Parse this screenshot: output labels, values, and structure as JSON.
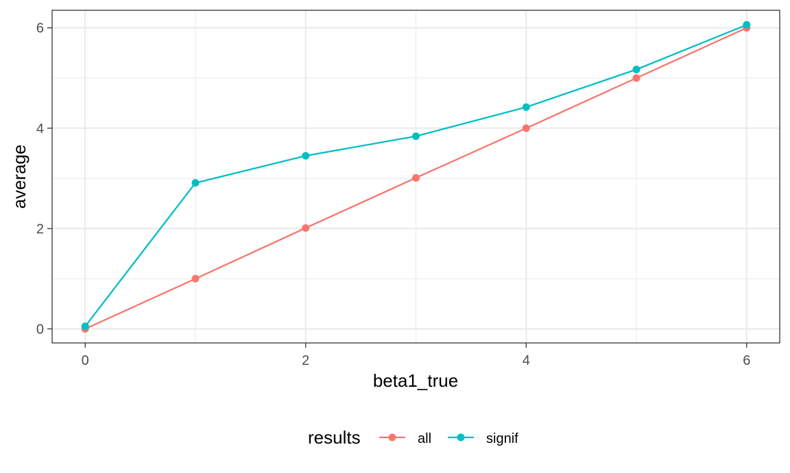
{
  "chart_data": {
    "type": "line",
    "xlabel": "beta1_true",
    "ylabel": "average",
    "xlim": [
      -0.3,
      6.3
    ],
    "ylim": [
      -0.28,
      6.35
    ],
    "x_ticks": [
      0,
      2,
      4,
      6
    ],
    "y_ticks": [
      0,
      2,
      4,
      6
    ],
    "x_minor_ticks": [
      1,
      3,
      5
    ],
    "y_minor_ticks": [
      1,
      3,
      5
    ],
    "grid": true,
    "legend": {
      "title": "results",
      "position": "bottom"
    },
    "series": [
      {
        "name": "all",
        "color": "#F8766D",
        "x": [
          0,
          1,
          2,
          3,
          4,
          5,
          6
        ],
        "y": [
          0.0,
          1.0,
          2.01,
          3.01,
          4.0,
          5.0,
          6.0
        ]
      },
      {
        "name": "signif",
        "color": "#00BFC4",
        "x": [
          0,
          1,
          2,
          3,
          4,
          5,
          6
        ],
        "y": [
          0.05,
          2.91,
          3.45,
          3.84,
          4.42,
          5.17,
          6.06
        ]
      }
    ]
  }
}
